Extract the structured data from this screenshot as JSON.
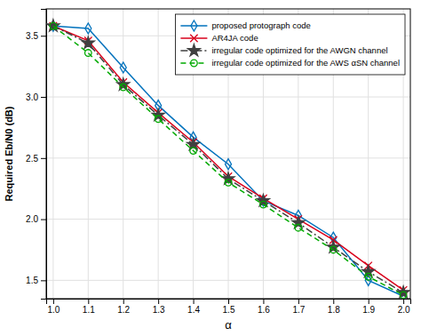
{
  "chart_data": {
    "type": "line",
    "xlabel": "α",
    "ylabel": "Required Eb/N0 (dB)",
    "x": [
      1.0,
      1.1,
      1.2,
      1.3,
      1.4,
      1.5,
      1.6,
      1.7,
      1.8,
      1.9,
      2.0
    ],
    "series": [
      {
        "name": "proposed protograph code",
        "color": "#0072BD",
        "marker": "diamond",
        "line_style": "solid",
        "values": [
          3.58,
          3.56,
          3.24,
          2.93,
          2.67,
          2.45,
          2.15,
          2.03,
          1.85,
          1.5,
          1.37
        ]
      },
      {
        "name": "AR4JA code",
        "color": "#D9001B",
        "marker": "x",
        "line_style": "solid",
        "values": [
          3.58,
          3.46,
          3.12,
          2.87,
          2.63,
          2.35,
          2.17,
          2.0,
          1.83,
          1.62,
          1.42
        ]
      },
      {
        "name": "irregular code optimized for the AWGN channel",
        "color": "#404040",
        "marker": "star",
        "line_style": "dash-dot",
        "values": [
          3.58,
          3.44,
          3.1,
          2.85,
          2.61,
          2.33,
          2.15,
          1.97,
          1.77,
          1.57,
          1.4
        ]
      },
      {
        "name": "irregular code optimized for the AWS αSN channel",
        "color": "#00AA00",
        "marker": "circle",
        "line_style": "dashed",
        "values": [
          3.58,
          3.36,
          3.08,
          2.82,
          2.56,
          2.3,
          2.12,
          1.93,
          1.75,
          1.53,
          1.38
        ]
      }
    ],
    "xlim": [
      0.98,
      2.02
    ],
    "ylim": [
      1.35,
      3.72
    ],
    "xticks": [
      {
        "value": 1.0,
        "label": "1.0"
      },
      1.1,
      1.2,
      1.3,
      1.4,
      1.5,
      1.6,
      1.7,
      1.8,
      1.9,
      {
        "value": 2.0,
        "label": "2.0"
      }
    ],
    "yticks": [
      1.5,
      {
        "value": 2.0,
        "label": "2.0"
      },
      2.5,
      {
        "value": 3.0,
        "label": "3.0"
      },
      3.5
    ],
    "grid": true,
    "legend": "upper right"
  }
}
